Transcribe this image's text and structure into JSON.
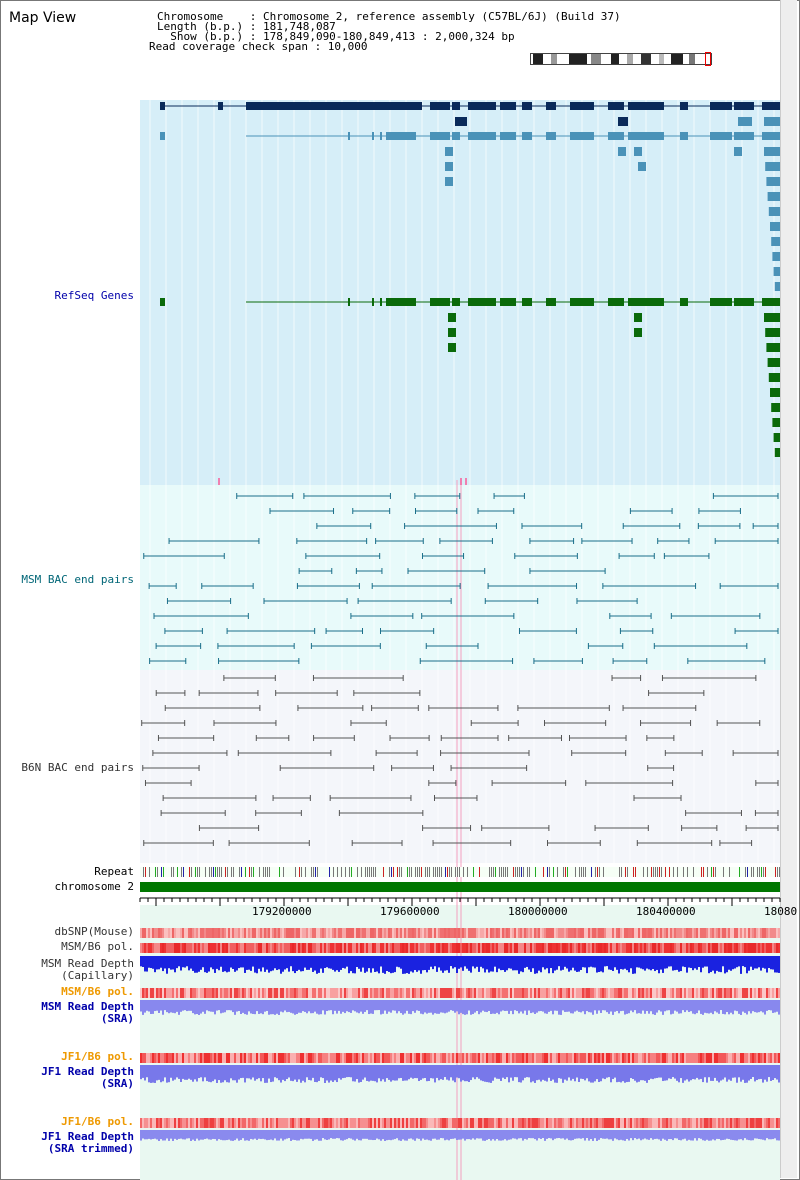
{
  "title": "Map View",
  "header": {
    "chromosome_label": "Chromosome    : Chromosome 2, reference assembly (C57BL/6J) (Build 37)",
    "length_label": "Length (b.p.) : 181,748,087",
    "show_label": "  Show (b.p.) : 178,849,090-180,849,413 : 2,000,324 bp",
    "coverage_label": "Read coverage check span : 10,000"
  },
  "tracks": {
    "refseq": "RefSeq Genes",
    "msm_bac": "MSM BAC end pairs",
    "b6n_bac": "B6N BAC end pairs",
    "repeat": "Repeat",
    "chromosome": "chromosome 2",
    "dbsnp": "dbSNP(Mouse)",
    "msm_b6_pol": "MSM/B6 pol.",
    "msm_depth_cap_1": "MSM Read Depth",
    "msm_depth_cap_2": "(Capillary)",
    "msm_b6_pol_2": "MSM/B6 pol.",
    "msm_depth_sra_1": "MSM Read Depth",
    "msm_depth_sra_2": "(SRA)",
    "jf1_pol": "JF1/B6 pol.",
    "jf1_depth_sra_1": "JF1 Read Depth",
    "jf1_depth_sra_2": "(SRA)",
    "jf1_pol_2": "JF1/B6 pol.",
    "jf1_depth_trim_1": "JF1 Read Depth",
    "jf1_depth_trim_2": "(SRA trimmed)"
  },
  "axis": {
    "ticks": [
      "179200000",
      "179600000",
      "180000000",
      "180400000",
      "18080"
    ]
  },
  "colors": {
    "refseq_bg": "#d6eef8",
    "bac_bg": "#e8fafa",
    "b6n_bg": "#f4f6fa",
    "msm_line": "#1a6f8a",
    "b6n_line": "#555555",
    "gene_dark": "#0a2a5a",
    "gene_mid": "#4a92b8",
    "gene_green": "#0a6a0a",
    "pol_red": "#ee4444",
    "depth_blue": "#2222dd",
    "depth_light": "#7777ee",
    "label_blue": "#0000aa",
    "label_teal": "#006677",
    "label_orange": "#ee9900"
  }
}
